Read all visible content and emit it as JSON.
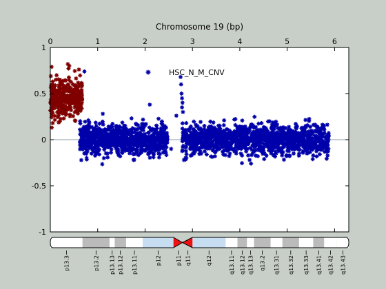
{
  "figure": {
    "background": "#c8cfc8"
  },
  "chart_data": {
    "type": "scatter",
    "title": "Chromosome 19 (bp)",
    "xlim": [
      0,
      6.3
    ],
    "ylim": [
      -1,
      1
    ],
    "x_ticks": [
      0,
      1,
      2,
      3,
      4,
      5,
      6
    ],
    "x_tick_position": "top",
    "y_ticks": [
      -1,
      -0.5,
      0,
      0.5,
      1
    ],
    "y_tick_labels": [
      "-1",
      "-0.5",
      "0",
      "0.5",
      "1"
    ],
    "grid": false,
    "zero_line": true,
    "legend": {
      "position": "top-center",
      "label": "HSC_N_M_CNV",
      "color": "#0000aa"
    },
    "series": [
      {
        "name": "HSC_N_M_CNV",
        "color": "#0000aa",
        "marker": "star",
        "segments": [
          {
            "x_range": [
              0.62,
              2.47
            ],
            "y_mean": 0.0,
            "y_spread": 0.14,
            "count": 900
          },
          {
            "x_range": [
              2.78,
              5.88
            ],
            "y_mean": 0.0,
            "y_spread": 0.14,
            "count": 1300
          }
        ],
        "outliers": [
          {
            "x": 0.72,
            "y": 0.74
          },
          {
            "x": 2.1,
            "y": 0.38
          },
          {
            "x": 2.66,
            "y": 0.26
          },
          {
            "x": 2.75,
            "y": 0.68
          },
          {
            "x": 2.76,
            "y": 0.6
          },
          {
            "x": 2.77,
            "y": 0.5
          },
          {
            "x": 2.78,
            "y": 0.45
          },
          {
            "x": 2.79,
            "y": 0.4
          },
          {
            "x": 2.78,
            "y": 0.35
          },
          {
            "x": 2.8,
            "y": 0.3
          },
          {
            "x": 2.55,
            "y": -0.1
          },
          {
            "x": 2.82,
            "y": -0.22
          }
        ]
      },
      {
        "color": "#800000",
        "marker": "star",
        "segments": [
          {
            "x_range": [
              0.0,
              0.68
            ],
            "y_mean": 0.45,
            "y_spread": 0.17,
            "count": 350
          }
        ],
        "outliers": [
          {
            "x": 0.37,
            "y": 0.82
          },
          {
            "x": 0.4,
            "y": 0.8
          },
          {
            "x": 0.05,
            "y": 0.18
          }
        ]
      }
    ]
  },
  "ideogram": {
    "centromere_color": "#ee1111",
    "bands": [
      {
        "label": "p13.3",
        "start": 0.0,
        "end": 0.68,
        "color": "#ffffff"
      },
      {
        "label": "p13.2",
        "start": 0.68,
        "end": 1.25,
        "color": "#bbbbbb"
      },
      {
        "label": "p13.13",
        "start": 1.25,
        "end": 1.36,
        "color": "#ffffff"
      },
      {
        "label": "p13.12",
        "start": 1.36,
        "end": 1.6,
        "color": "#bbbbbb"
      },
      {
        "label": "p13.11",
        "start": 1.6,
        "end": 1.95,
        "color": "#ffffff"
      },
      {
        "label": "p12",
        "start": 1.95,
        "end": 2.6,
        "color": "#c6ddf2"
      },
      {
        "label": "p11",
        "start": 2.6,
        "end": 2.81,
        "color": "#ee1111"
      },
      {
        "label": "q11",
        "start": 2.81,
        "end": 3.0,
        "color": "#ee1111"
      },
      {
        "label": "q12",
        "start": 3.0,
        "end": 3.7,
        "color": "#c6ddf2"
      },
      {
        "label": "q13.11",
        "start": 3.7,
        "end": 3.95,
        "color": "#ffffff"
      },
      {
        "label": "q13.12",
        "start": 3.95,
        "end": 4.15,
        "color": "#bbbbbb"
      },
      {
        "label": "q13.13",
        "start": 4.15,
        "end": 4.3,
        "color": "#ffffff"
      },
      {
        "label": "q13.2",
        "start": 4.3,
        "end": 4.65,
        "color": "#bbbbbb"
      },
      {
        "label": "q13.31",
        "start": 4.65,
        "end": 4.9,
        "color": "#ffffff"
      },
      {
        "label": "q13.32",
        "start": 4.9,
        "end": 5.25,
        "color": "#bbbbbb"
      },
      {
        "label": "q13.33",
        "start": 5.25,
        "end": 5.55,
        "color": "#ffffff"
      },
      {
        "label": "q13.41",
        "start": 5.55,
        "end": 5.78,
        "color": "#bbbbbb"
      },
      {
        "label": "q13.42",
        "start": 5.78,
        "end": 6.05,
        "color": "#ffffff"
      },
      {
        "label": "q13.43",
        "start": 6.05,
        "end": 6.3,
        "color": "#ffffff"
      }
    ]
  }
}
